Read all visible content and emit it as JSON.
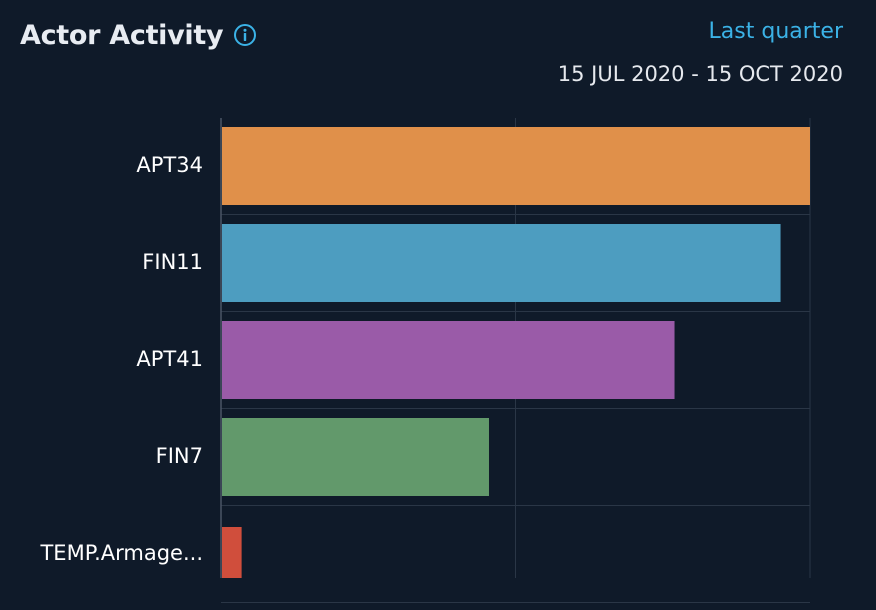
{
  "header": {
    "title": "Actor Activity",
    "range_link": "Last quarter",
    "date_range": "15 JUL 2020 - 15 OCT 2020"
  },
  "icons": {
    "info": "info-circle-icon"
  },
  "colors": {
    "background": "#0f1a29",
    "accent": "#3bb2e6"
  },
  "chart_data": {
    "type": "bar",
    "orientation": "horizontal",
    "categories": [
      "APT34",
      "FIN11",
      "APT41",
      "FIN7",
      "TEMP.Armage..."
    ],
    "values": [
      100,
      95,
      77,
      45.5,
      3.5
    ],
    "colors": [
      "#e0904a",
      "#4d9dc0",
      "#9a5ba8",
      "#62996b",
      "#d04e3c"
    ],
    "xlim": [
      0,
      100
    ],
    "grid": true
  }
}
